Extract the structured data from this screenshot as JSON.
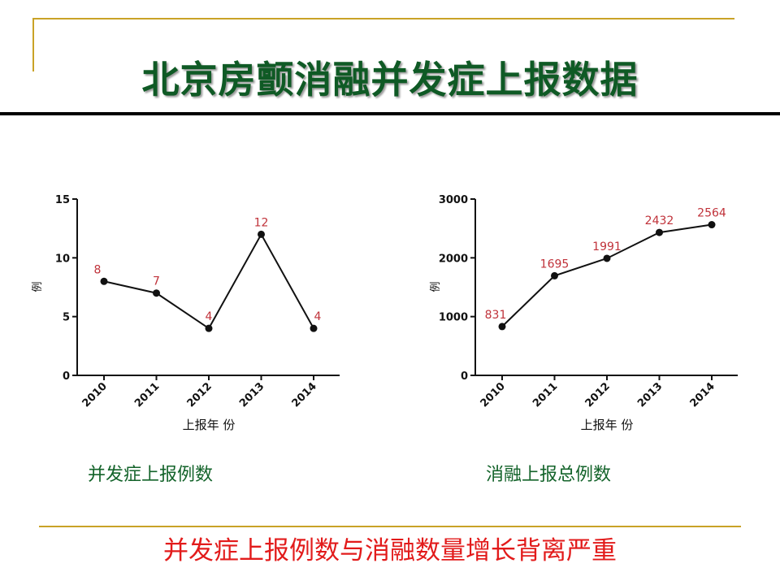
{
  "slide": {
    "title": "北京房颤消融并发症上报数据",
    "summary": "并发症上报例数与消融数量增长背离严重"
  },
  "colors": {
    "title": "#0f5a25",
    "caption": "#13632a",
    "summary": "#e21b1b",
    "data_label": "#c0323a",
    "rule": "#c9a227"
  },
  "chart_data": [
    {
      "type": "line",
      "caption": "并发症上报例数",
      "x": [
        "2010",
        "2011",
        "2012",
        "2013",
        "2014"
      ],
      "y": [
        8,
        7,
        4,
        12,
        4
      ],
      "xlabel": "上报年 份",
      "ylabel": "例",
      "ylim": [
        0,
        15
      ],
      "yticks": [
        0,
        5,
        10,
        15
      ],
      "grid": false
    },
    {
      "type": "line",
      "caption": "消融上报总例数",
      "x": [
        "2010",
        "2011",
        "2012",
        "2013",
        "2014"
      ],
      "y": [
        831,
        1695,
        1991,
        2432,
        2564
      ],
      "xlabel": "上报年 份",
      "ylabel": "例",
      "ylim": [
        0,
        3000
      ],
      "yticks": [
        0,
        1000,
        2000,
        3000
      ],
      "grid": false
    }
  ]
}
